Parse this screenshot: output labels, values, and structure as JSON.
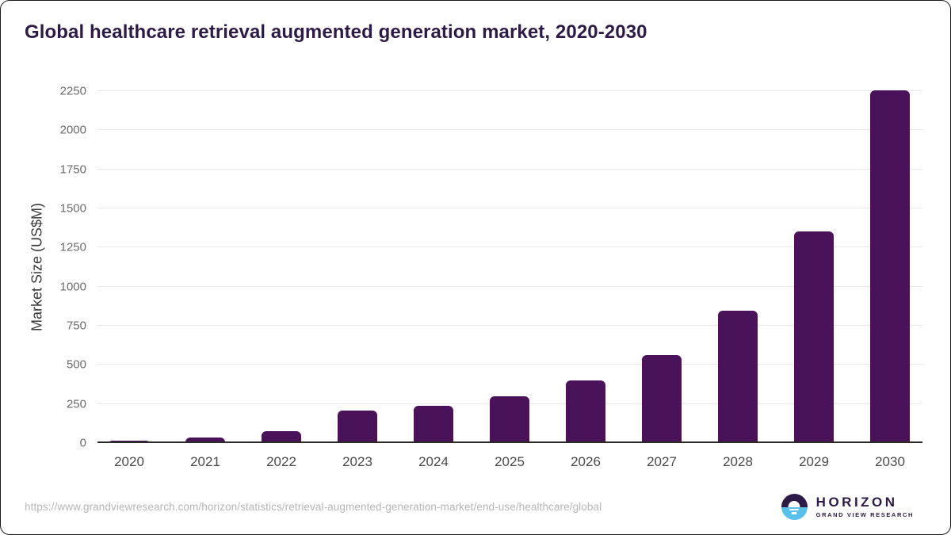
{
  "title": "Global healthcare retrieval augmented generation market, 2020-2030",
  "chart_data": {
    "type": "bar",
    "title": "Global healthcare retrieval augmented generation market, 2020-2030",
    "categories": [
      "2020",
      "2021",
      "2022",
      "2023",
      "2024",
      "2025",
      "2026",
      "2027",
      "2028",
      "2029",
      "2030"
    ],
    "values": [
      16,
      36,
      77,
      207,
      239,
      298,
      400,
      565,
      845,
      1351,
      2257
    ],
    "xlabel": "",
    "ylabel": "Market Size (US$M)",
    "ylim": [
      0,
      2250
    ],
    "yticks": [
      0,
      250,
      500,
      750,
      1000,
      1250,
      1500,
      1750,
      2000,
      2250
    ],
    "grid": true,
    "legend": "none",
    "bar_color": "#4a1259"
  },
  "footer": {
    "source_url": "https://www.grandviewresearch.com/horizon/statistics/retrieval-augmented-generation-market/end-use/healthcare/global",
    "logo": {
      "name": "HORIZON",
      "subtitle": "GRAND VIEW RESEARCH"
    }
  },
  "colors": {
    "title": "#2e1a47",
    "bar": "#4a1259",
    "gridline": "#e9e9e9",
    "axis_line": "#2b2b2b",
    "ytick_text": "#6b6b6b",
    "xtick_text": "#4a4a4a",
    "source_text": "#b5b5b5",
    "logo_purple": "#2e1a47",
    "logo_blue": "#57c1ec"
  }
}
